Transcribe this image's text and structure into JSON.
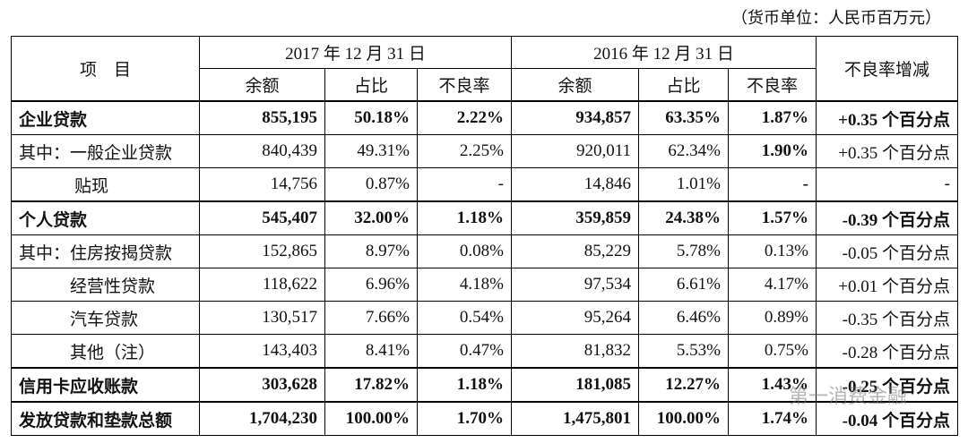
{
  "unit_note": "（货币单位：人民币百万元）",
  "table": {
    "header": {
      "item": "项　目",
      "period_2017": "2017 年 12 月 31 日",
      "period_2016": "2016 年 12 月 31 日",
      "change": "不良率增减",
      "sub": [
        "余额",
        "占比",
        "不良率",
        "余额",
        "占比",
        "不良率"
      ]
    },
    "rows": [
      [
        "企业贷款",
        "855,195",
        "50.18%",
        "2.22%",
        "934,857",
        "63.35%",
        "1.87%",
        "+0.35 个百分点"
      ],
      [
        "其中：一般企业贷款",
        "840,439",
        "49.31%",
        "2.25%",
        "920,011",
        "62.34%",
        "1.90%",
        "+0.35 个百分点"
      ],
      [
        "贴现",
        "14,756",
        "0.87%",
        "-",
        "14,846",
        "1.01%",
        "-",
        "-"
      ],
      [
        "个人贷款",
        "545,407",
        "32.00%",
        "1.18%",
        "359,859",
        "24.38%",
        "1.57%",
        "-0.39 个百分点"
      ],
      [
        "其中：住房按揭贷款",
        "152,865",
        "8.97%",
        "0.08%",
        "85,229",
        "5.78%",
        "0.13%",
        "-0.05 个百分点"
      ],
      [
        "经营性贷款",
        "118,622",
        "6.96%",
        "4.18%",
        "97,534",
        "6.61%",
        "4.17%",
        "+0.01 个百分点"
      ],
      [
        "汽车贷款",
        "130,517",
        "7.66%",
        "0.54%",
        "95,264",
        "6.46%",
        "0.89%",
        "-0.35 个百分点"
      ],
      [
        "其他（注）",
        "143,403",
        "8.41%",
        "0.47%",
        "81,832",
        "5.53%",
        "0.75%",
        "-0.28 个百分点"
      ],
      [
        "信用卡应收账款",
        "303,628",
        "17.82%",
        "1.18%",
        "181,085",
        "12.27%",
        "1.43%",
        "-0.25 个百分点"
      ],
      [
        "发放贷款和垫款总额",
        "1,704,230",
        "100.00%",
        "1.70%",
        "1,475,801",
        "100.00%",
        "1.74%",
        "-0.04 个百分点"
      ]
    ]
  },
  "watermark": "第一消费金融"
}
